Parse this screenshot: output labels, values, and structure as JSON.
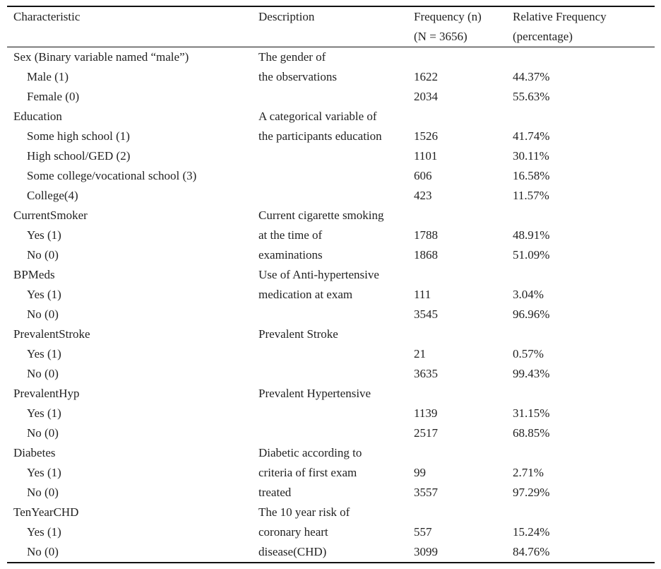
{
  "headers": {
    "characteristic": "Characteristic",
    "description": "Description",
    "frequency_line1": "Frequency (n)",
    "frequency_line2": "(N = 3656)",
    "relative_line1": "Relative Frequency",
    "relative_line2": "(percentage)"
  },
  "rows": [
    {
      "label": "Sex (Binary variable named “male”)",
      "desc": "The gender of",
      "n": "",
      "pct": "",
      "sub": false
    },
    {
      "label": "Male (1)",
      "desc": "the observations",
      "n": "1622",
      "pct": "44.37%",
      "sub": true
    },
    {
      "label": "Female (0)",
      "desc": "",
      "n": "2034",
      "pct": "55.63%",
      "sub": true
    },
    {
      "label": "Education",
      "desc": "A categorical variable of",
      "n": "",
      "pct": "",
      "sub": false
    },
    {
      "label": "Some high school (1)",
      "desc": "the participants education",
      "n": "1526",
      "pct": "41.74%",
      "sub": true
    },
    {
      "label": "High school/GED (2)",
      "desc": "",
      "n": "1101",
      "pct": "30.11%",
      "sub": true
    },
    {
      "label": "Some college/vocational school (3)",
      "desc": "",
      "n": "606",
      "pct": "16.58%",
      "sub": true
    },
    {
      "label": "College(4)",
      "desc": "",
      "n": "423",
      "pct": "11.57%",
      "sub": true
    },
    {
      "label": "CurrentSmoker",
      "desc": "Current cigarette smoking",
      "n": "",
      "pct": "",
      "sub": false
    },
    {
      "label": "Yes (1)",
      "desc": "at the time of",
      "n": "1788",
      "pct": "48.91%",
      "sub": true
    },
    {
      "label": "No (0)",
      "desc": "examinations",
      "n": "1868",
      "pct": "51.09%",
      "sub": true
    },
    {
      "label": "BPMeds",
      "desc": "Use of Anti-hypertensive",
      "n": "",
      "pct": "",
      "sub": false
    },
    {
      "label": "Yes (1)",
      "desc": "medication at exam",
      "n": "111",
      "pct": "3.04%",
      "sub": true
    },
    {
      "label": "No (0)",
      "desc": "",
      "n": "3545",
      "pct": "96.96%",
      "sub": true
    },
    {
      "label": "PrevalentStroke",
      "desc": "Prevalent Stroke",
      "n": "",
      "pct": "",
      "sub": false
    },
    {
      "label": "Yes (1)",
      "desc": "",
      "n": "21",
      "pct": "0.57%",
      "sub": true
    },
    {
      "label": "No (0)",
      "desc": "",
      "n": "3635",
      "pct": "99.43%",
      "sub": true
    },
    {
      "label": "PrevalentHyp",
      "desc": "Prevalent Hypertensive",
      "n": "",
      "pct": "",
      "sub": false
    },
    {
      "label": "Yes (1)",
      "desc": "",
      "n": "1139",
      "pct": "31.15%",
      "sub": true
    },
    {
      "label": "No (0)",
      "desc": "",
      "n": "2517",
      "pct": "68.85%",
      "sub": true
    },
    {
      "label": "Diabetes",
      "desc": "Diabetic according to",
      "n": "",
      "pct": "",
      "sub": false
    },
    {
      "label": "Yes (1)",
      "desc": "criteria of first exam",
      "n": "99",
      "pct": "2.71%",
      "sub": true
    },
    {
      "label": "No (0)",
      "desc": "treated",
      "n": "3557",
      "pct": "97.29%",
      "sub": true
    },
    {
      "label": "TenYearCHD",
      "desc": "The 10 year risk of",
      "n": "",
      "pct": "",
      "sub": false
    },
    {
      "label": "Yes (1)",
      "desc": "coronary heart",
      "n": "557",
      "pct": "15.24%",
      "sub": true
    },
    {
      "label": "No (0)",
      "desc": "disease(CHD)",
      "n": "3099",
      "pct": "84.76%",
      "sub": true
    }
  ]
}
